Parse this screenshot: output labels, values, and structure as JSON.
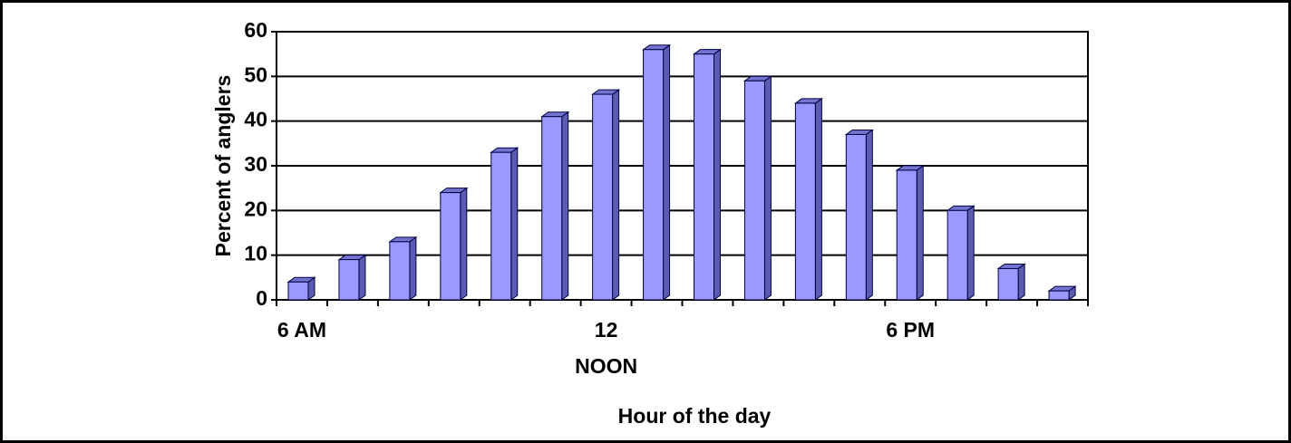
{
  "chart_data": {
    "type": "bar",
    "x_label": "Hour of the day",
    "y_label": "Percent of anglers",
    "categories": [
      "6 AM",
      null,
      null,
      null,
      null,
      null,
      [
        "12",
        "NOON"
      ],
      null,
      null,
      null,
      null,
      null,
      "6 PM",
      null,
      null,
      null
    ],
    "values": [
      4,
      9,
      13,
      24,
      33,
      41,
      46,
      56,
      55,
      49,
      44,
      37,
      29,
      20,
      7,
      2
    ],
    "color": "#9999ff",
    "ylim": [
      0,
      60
    ],
    "yticks": [
      0,
      10,
      20,
      30,
      40,
      50,
      60
    ],
    "grid": true
  }
}
